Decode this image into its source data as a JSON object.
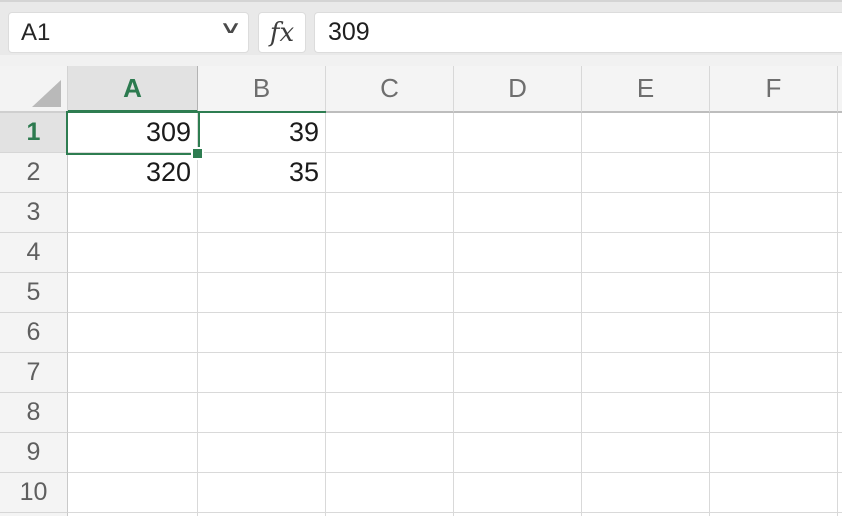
{
  "name_box": {
    "value": "A1"
  },
  "formula_bar": {
    "fx_label": "fx",
    "value": "309"
  },
  "icons": {
    "name_box_chevron": "˅"
  },
  "grid": {
    "columns": [
      "A",
      "B",
      "C",
      "D",
      "E",
      "F"
    ],
    "selected_column": "A",
    "rows": [
      "1",
      "2",
      "3",
      "4",
      "5",
      "6",
      "7",
      "8",
      "9",
      "10"
    ],
    "selected_row": "1",
    "selected_cell": "A1",
    "cells": [
      {
        "ref": "A1",
        "value": "309"
      },
      {
        "ref": "B1",
        "value": "39"
      },
      {
        "ref": "A2",
        "value": "320"
      },
      {
        "ref": "B2",
        "value": "35"
      }
    ]
  },
  "colors": {
    "accent_green": "#2e7d51",
    "selected_header_text": "#2c7a4f",
    "selected_header_bg": "#e2e2e2",
    "header_bg": "#f4f4f4",
    "gridline": "#d9d9d9",
    "chrome_bg": "#e9e9e9"
  }
}
